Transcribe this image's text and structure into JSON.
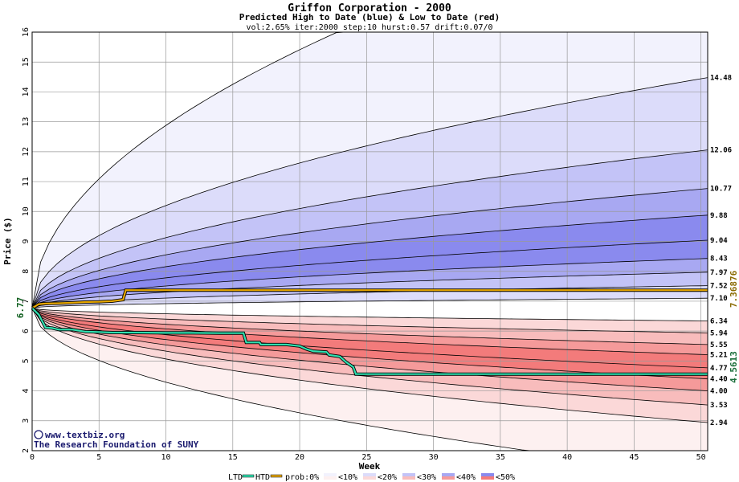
{
  "header": {
    "title": "Griffon Corporation - 2000",
    "subtitle": "Predicted High to Date (blue) &  Low to Date (red)",
    "params": "vol:2.65% iter:2000 step:10 hurst:0.57 drift:0.07/0"
  },
  "credit": {
    "line1": "www.textbiz.org",
    "line2": "The Research Foundation of SUNY",
    "copyright_symbol": "©"
  },
  "legend": {
    "ltd": "LTD",
    "htd": "HTD",
    "prob0": "prob:0%",
    "b10": "<10%",
    "b20": "<20%",
    "b30": "<30%",
    "b40": "<40%",
    "b50": "<50%"
  },
  "colors": {
    "blue_bands": [
      "#f2f2fd",
      "#dcdcfa",
      "#c3c3f7",
      "#a8a8f2",
      "#8a8aee"
    ],
    "red_bands": [
      "#fdf0f0",
      "#fbd8d8",
      "#f8bcbc",
      "#f59a9a",
      "#f37b7b"
    ],
    "htd_line": "#e8a800",
    "ltd_line": "#30e0b0",
    "grid": "#999999"
  },
  "chart_data": {
    "type": "line",
    "title": "Griffon Corporation - 2000",
    "subtitle": "Predicted High to Date (blue) &  Low to Date (red)",
    "xlabel": "Week",
    "ylabel": "Price ($)",
    "xlim": [
      0,
      50.5
    ],
    "ylim": [
      2,
      16
    ],
    "x_ticks": [
      0,
      5,
      10,
      15,
      20,
      25,
      30,
      35,
      40,
      45,
      50
    ],
    "y_ticks": [
      2,
      3,
      4,
      5,
      6,
      7,
      8,
      9,
      10,
      11,
      12,
      13,
      14,
      15,
      16
    ],
    "grid": true,
    "start_price": 6.77,
    "start_price_label": "6.77",
    "upper_band_endpoints": [
      14.48,
      12.06,
      10.77,
      9.88,
      9.04,
      8.43,
      7.97,
      7.52,
      7.1
    ],
    "upper_band_labels": [
      "14.48",
      "12.06",
      "10.77",
      "9.88",
      "9.04",
      "8.43",
      "7.97",
      "7.52",
      "7.10"
    ],
    "lower_band_endpoints": [
      6.34,
      5.94,
      5.55,
      5.21,
      4.77,
      4.4,
      4.0,
      3.53,
      2.94
    ],
    "lower_band_labels": [
      "6.34",
      "5.94",
      "5.55",
      "5.21",
      "4.77",
      "4.40",
      "4.00",
      "3.53",
      "2.94"
    ],
    "htd_series": {
      "name": "HTD",
      "final_value_label": "7.36876",
      "x": [
        0,
        0.5,
        1,
        2,
        3,
        4,
        5,
        6,
        6.8,
        7.0,
        10,
        20,
        30,
        40,
        50.5
      ],
      "y": [
        6.77,
        6.9,
        6.92,
        6.93,
        6.95,
        6.97,
        6.98,
        7.0,
        7.05,
        7.37,
        7.37,
        7.37,
        7.37,
        7.37,
        7.37
      ]
    },
    "ltd_series": {
      "name": "LTD",
      "final_value_label": "4.5613",
      "x": [
        0,
        0.5,
        1,
        1.5,
        2,
        3,
        4,
        5,
        6,
        8,
        10,
        12,
        14,
        15.8,
        16,
        17,
        17.1,
        19,
        20,
        20.5,
        21,
        22,
        22.2,
        23,
        23.5,
        24,
        24.2,
        26,
        30,
        40,
        50.5
      ],
      "y": [
        6.77,
        6.55,
        6.12,
        6.1,
        6.05,
        6.05,
        5.98,
        5.97,
        5.95,
        5.95,
        5.94,
        5.94,
        5.93,
        5.93,
        5.62,
        5.62,
        5.55,
        5.55,
        5.5,
        5.4,
        5.33,
        5.3,
        5.2,
        5.15,
        4.95,
        4.8,
        4.56,
        4.56,
        4.56,
        4.56,
        4.56
      ]
    }
  }
}
